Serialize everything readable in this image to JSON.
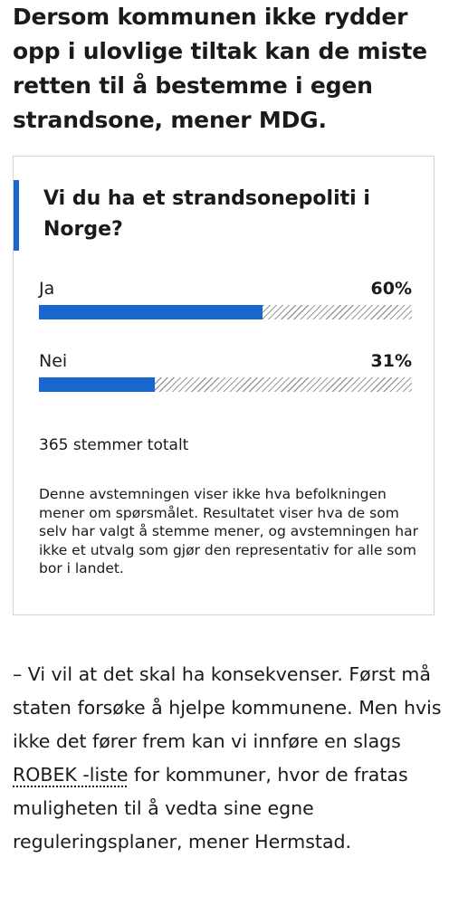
{
  "article": {
    "headline": "Dersom kommunen ikke rydder opp i ulovlige tiltak kan de miste retten til å bestemme i egen strandsone, mener MDG.",
    "body_before_link": "– Vi vil at det skal ha konsekvenser. Først må staten forsøke å hjelpe kommunene. Men hvis ikke det fører frem kan vi innføre en slags ",
    "body_link": "ROBEK -liste",
    "body_after_link": " for kommuner, hvor de fratas muligheten til å vedta sine egne reguleringsplaner, mener Hermstad."
  },
  "poll": {
    "question": "Vi du ha et strandsonepoliti i Norge?",
    "options": [
      {
        "label": "Ja",
        "percent_text": "60%",
        "fill_fraction": 0.6
      },
      {
        "label": "Nei",
        "percent_text": "31%",
        "fill_fraction": 0.31
      }
    ],
    "total_votes": "365 stemmer totalt",
    "disclaimer": "Denne avstemningen viser ikke hva befolkningen mener om spørsmålet. Resultatet viser hva de som selv har valgt å stemme mener, og avstemningen har ikke et utvalg som gjør den representativ for alle som bor i landet.",
    "colors": {
      "accent": "#1767ce",
      "bar_fill": "#1767ce",
      "bar_hatch": "#9a9a9a",
      "card_border": "#d3d3d3"
    }
  }
}
